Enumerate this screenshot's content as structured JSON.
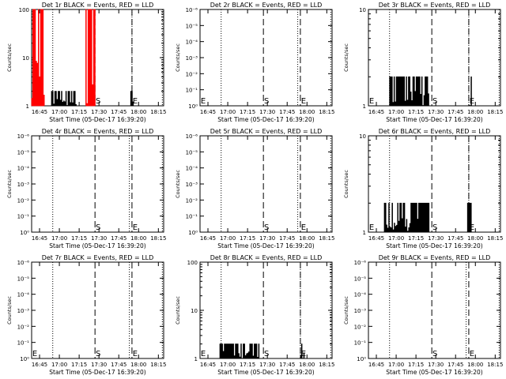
{
  "chart_data": [
    {
      "type": "line",
      "title": "Det 1r BLACK = Events, RED = LLD",
      "xlabel": "Start Time (05-Dec-17 16:39:20)",
      "ylabel": "Counts/sec",
      "xlim": [
        "16:39",
        "18:19"
      ],
      "ylim": [
        1,
        100
      ],
      "yscale": "log",
      "x_ticks": [
        "16:45",
        "17:00",
        "17:15",
        "17:30",
        "17:45",
        "18:00",
        "18:15"
      ],
      "y_ticks": [
        "1",
        "10",
        "100"
      ],
      "markers": [
        {
          "time": "17:27",
          "label": "S"
        },
        {
          "time": "17:55",
          "label": "E"
        }
      ],
      "dotted_lines": [
        "16:55",
        "17:55",
        "18:18"
      ],
      "series": [
        {
          "color": "#000000",
          "bursts": [
            [
              "16:54",
              "17:13",
              2
            ],
            [
              "17:54",
              "17:56",
              2
            ]
          ]
        },
        {
          "color": "#ff0000",
          "bursts": [
            [
              "16:39",
              "16:49",
              100
            ],
            [
              "17:20",
              "17:27",
              100
            ]
          ]
        }
      ]
    },
    {
      "type": "line",
      "title": "Det 2r BLACK = Events, RED = LLD",
      "xlabel": "Start Time (05-Dec-17 16:39:20)",
      "ylabel": "Counts/sec",
      "xlim": [
        "16:39",
        "18:19"
      ],
      "ylim": [
        1,
        1000000
      ],
      "yscale": "log",
      "x_ticks": [
        "16:45",
        "17:00",
        "17:15",
        "17:30",
        "17:45",
        "18:00",
        "18:15"
      ],
      "y_ticks": [
        "10⁰",
        "10⁻¹",
        "10⁻²",
        "10⁻³",
        "10⁻⁴",
        "10⁻⁵",
        "10⁻⁶"
      ],
      "markers": [
        {
          "time": "17:27",
          "label": "S"
        },
        {
          "time": "17:55",
          "label": "E"
        }
      ],
      "dotted_lines": [
        "16:55",
        "17:53",
        "18:18"
      ],
      "series": [],
      "corner_label": "E"
    },
    {
      "type": "line",
      "title": "Det 3r BLACK = Events, RED = LLD",
      "xlabel": "Start Time (05-Dec-17 16:39:20)",
      "ylabel": "Counts/sec",
      "xlim": [
        "16:39",
        "18:19"
      ],
      "ylim": [
        1,
        10
      ],
      "yscale": "log",
      "x_ticks": [
        "16:45",
        "17:00",
        "17:15",
        "17:30",
        "17:45",
        "18:00",
        "18:15"
      ],
      "y_ticks": [
        "1",
        "10"
      ],
      "markers": [
        {
          "time": "17:27",
          "label": "S"
        },
        {
          "time": "17:55",
          "label": "E"
        }
      ],
      "dotted_lines": [
        "16:55",
        "17:55",
        "18:18"
      ],
      "series": [
        {
          "color": "#000000",
          "bursts": [
            [
              "16:55",
              "17:25",
              2
            ],
            [
              "17:55",
              "17:57",
              2
            ]
          ]
        }
      ],
      "corner_label": "E"
    },
    {
      "type": "line",
      "title": "Det 4r BLACK = Events, RED = LLD",
      "xlabel": "Start Time (05-Dec-17 16:39:20)",
      "ylabel": "Counts/sec",
      "xlim": [
        "16:39",
        "18:19"
      ],
      "ylim": [
        1,
        1000000
      ],
      "yscale": "log",
      "x_ticks": [
        "16:45",
        "17:00",
        "17:15",
        "17:30",
        "17:45",
        "18:00",
        "18:15"
      ],
      "y_ticks": [
        "10⁰",
        "10⁻¹",
        "10⁻²",
        "10⁻³",
        "10⁻⁴",
        "10⁻⁵",
        "10⁻⁶"
      ],
      "markers": [
        {
          "time": "17:27",
          "label": "S"
        },
        {
          "time": "17:55",
          "label": "E"
        }
      ],
      "dotted_lines": [
        "16:55",
        "17:53",
        "18:18"
      ],
      "series": []
    },
    {
      "type": "line",
      "title": "Det 5r BLACK = Events, RED = LLD",
      "xlabel": "Start Time (05-Dec-17 16:39:20)",
      "ylabel": "Counts/sec",
      "xlim": [
        "16:39",
        "18:19"
      ],
      "ylim": [
        1,
        1000000
      ],
      "yscale": "log",
      "x_ticks": [
        "16:45",
        "17:00",
        "17:15",
        "17:30",
        "17:45",
        "18:00",
        "18:15"
      ],
      "y_ticks": [
        "10⁰",
        "10⁻¹",
        "10⁻²",
        "10⁻³",
        "10⁻⁴",
        "10⁻⁵",
        "10⁻⁶"
      ],
      "markers": [
        {
          "time": "17:27",
          "label": "S"
        },
        {
          "time": "17:55",
          "label": "E"
        }
      ],
      "dotted_lines": [
        "16:55",
        "17:53",
        "18:18"
      ],
      "series": []
    },
    {
      "type": "line",
      "title": "Det 6r BLACK = Events, RED = LLD",
      "xlabel": "Start Time (05-Dec-17 16:39:20)",
      "ylabel": "Counts/sec",
      "xlim": [
        "16:39",
        "18:19"
      ],
      "ylim": [
        1,
        10
      ],
      "yscale": "log",
      "x_ticks": [
        "16:45",
        "17:00",
        "17:15",
        "17:30",
        "17:45",
        "18:00",
        "18:15"
      ],
      "y_ticks": [
        "1",
        "10"
      ],
      "markers": [
        {
          "time": "17:27",
          "label": "S"
        },
        {
          "time": "17:55",
          "label": "E"
        }
      ],
      "dotted_lines": [
        "16:55",
        "17:55",
        "18:18"
      ],
      "series": [
        {
          "color": "#000000",
          "bursts": [
            [
              "16:51",
              "17:25",
              2
            ],
            [
              "17:54",
              "17:57",
              2
            ]
          ]
        }
      ],
      "corner_label": "E"
    },
    {
      "type": "line",
      "title": "Det 7r BLACK = Events, RED = LLD",
      "xlabel": "Start Time (05-Dec-17 16:39:20)",
      "ylabel": "Counts/sec",
      "xlim": [
        "16:39",
        "18:19"
      ],
      "ylim": [
        1,
        1000000
      ],
      "yscale": "log",
      "x_ticks": [
        "16:45",
        "17:00",
        "17:15",
        "17:30",
        "17:45",
        "18:00",
        "18:15"
      ],
      "y_ticks": [
        "10⁰",
        "10⁻¹",
        "10⁻²",
        "10⁻³",
        "10⁻⁴",
        "10⁻⁵",
        "10⁻⁶"
      ],
      "markers": [
        {
          "time": "17:27",
          "label": "S"
        },
        {
          "time": "17:55",
          "label": "E"
        }
      ],
      "dotted_lines": [
        "16:55",
        "17:53",
        "18:18"
      ],
      "series": [],
      "corner_label": "E"
    },
    {
      "type": "line",
      "title": "Det 8r BLACK = Events, RED = LLD",
      "xlabel": "Start Time (05-Dec-17 16:39:20)",
      "ylabel": "Counts/sec",
      "xlim": [
        "16:39",
        "18:19"
      ],
      "ylim": [
        1,
        100
      ],
      "yscale": "log",
      "x_ticks": [
        "16:45",
        "17:00",
        "17:15",
        "17:30",
        "17:45",
        "18:00",
        "18:15"
      ],
      "y_ticks": [
        "1",
        "10",
        "100"
      ],
      "markers": [
        {
          "time": "17:27",
          "label": "S"
        },
        {
          "time": "17:55",
          "label": "E"
        }
      ],
      "dotted_lines": [
        "16:55",
        "17:55",
        "18:18"
      ],
      "series": [
        {
          "color": "#000000",
          "bursts": [
            [
              "16:54",
              "17:24",
              2
            ],
            [
              "17:55",
              "17:58",
              2
            ]
          ]
        }
      ],
      "corner_label": "E"
    },
    {
      "type": "line",
      "title": "Det 9r BLACK = Events, RED = LLD",
      "xlabel": "Start Time (05-Dec-17 16:39:20)",
      "ylabel": "Counts/sec",
      "xlim": [
        "16:39",
        "18:19"
      ],
      "ylim": [
        1,
        1000000
      ],
      "yscale": "log",
      "x_ticks": [
        "16:45",
        "17:00",
        "17:15",
        "17:30",
        "17:45",
        "18:00",
        "18:15"
      ],
      "y_ticks": [
        "10⁰",
        "10⁻¹",
        "10⁻²",
        "10⁻³",
        "10⁻⁴",
        "10⁻⁵",
        "10⁻⁶"
      ],
      "markers": [
        {
          "time": "17:27",
          "label": "S"
        },
        {
          "time": "17:55",
          "label": "E"
        }
      ],
      "dotted_lines": [
        "16:55",
        "17:53",
        "18:18"
      ],
      "series": []
    }
  ]
}
